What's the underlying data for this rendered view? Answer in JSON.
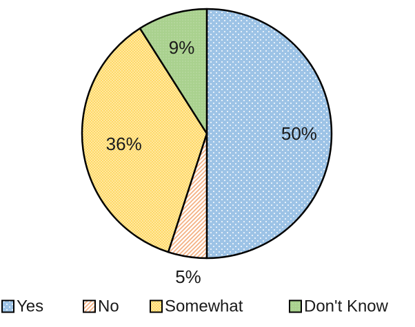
{
  "chart_data": {
    "type": "pie",
    "categories": [
      "Yes",
      "No",
      "Somewhat",
      "Don't Know"
    ],
    "values": [
      50,
      5,
      36,
      9
    ],
    "data_labels": [
      "50%",
      "5%",
      "36%",
      "9%"
    ],
    "start_angle_deg": 0,
    "direction": "clockwise",
    "colors": [
      "#9dc3e6",
      "#f4b183",
      "#ffd966",
      "#a9d18e"
    ],
    "patterns": [
      "dotted",
      "diagonal-hatch",
      "dotted",
      "dense-dots"
    ],
    "legend_position": "bottom",
    "title": ""
  }
}
